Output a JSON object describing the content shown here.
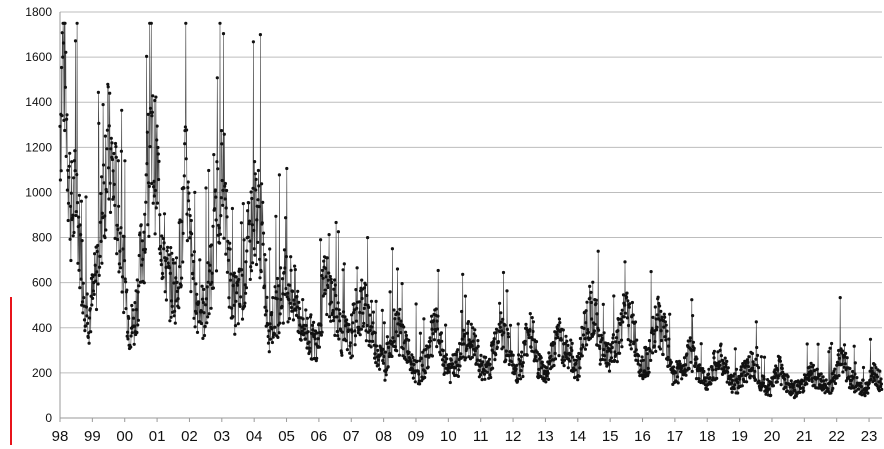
{
  "chart_data": {
    "type": "line",
    "title": "",
    "xlabel": "",
    "ylabel": "",
    "ylim": [
      0,
      1800
    ],
    "xlim": [
      1998,
      2023.4
    ],
    "grid": true,
    "legend": "none",
    "y_ticks": [
      0,
      200,
      400,
      600,
      800,
      1000,
      1200,
      1400,
      1600,
      1800
    ],
    "x_tick_labels": [
      "98",
      "99",
      "00",
      "01",
      "02",
      "03",
      "04",
      "05",
      "06",
      "07",
      "08",
      "09",
      "10",
      "11",
      "12",
      "13",
      "14",
      "15",
      "16",
      "17",
      "18",
      "19",
      "20",
      "21",
      "22",
      "23"
    ],
    "series": [
      {
        "color": "#111111",
        "anchors": [
          [
            1998.0,
            1300
          ],
          [
            1998.08,
            1600
          ],
          [
            1998.15,
            1620
          ],
          [
            1998.25,
            1150
          ],
          [
            1998.35,
            900
          ],
          [
            1998.5,
            980
          ],
          [
            1998.75,
            550
          ],
          [
            1998.9,
            450
          ],
          [
            1999.1,
            600
          ],
          [
            1999.3,
            900
          ],
          [
            1999.45,
            1200
          ],
          [
            1999.6,
            1100
          ],
          [
            1999.8,
            900
          ],
          [
            2000.0,
            600
          ],
          [
            2000.15,
            400
          ],
          [
            2000.3,
            420
          ],
          [
            2000.5,
            700
          ],
          [
            2000.7,
            950
          ],
          [
            2000.85,
            1180
          ],
          [
            2001.0,
            1100
          ],
          [
            2001.15,
            800
          ],
          [
            2001.35,
            600
          ],
          [
            2001.6,
            580
          ],
          [
            2001.8,
            850
          ],
          [
            2001.9,
            1100
          ],
          [
            2002.0,
            780
          ],
          [
            2002.2,
            520
          ],
          [
            2002.45,
            460
          ],
          [
            2002.7,
            650
          ],
          [
            2002.95,
            1100
          ],
          [
            2003.15,
            800
          ],
          [
            2003.35,
            500
          ],
          [
            2003.6,
            540
          ],
          [
            2003.85,
            780
          ],
          [
            2004.05,
            950
          ],
          [
            2004.25,
            800
          ],
          [
            2004.45,
            400
          ],
          [
            2004.7,
            480
          ],
          [
            2004.95,
            600
          ],
          [
            2005.15,
            580
          ],
          [
            2005.4,
            450
          ],
          [
            2005.65,
            380
          ],
          [
            2005.9,
            330
          ],
          [
            2006.2,
            600
          ],
          [
            2006.45,
            500
          ],
          [
            2006.7,
            380
          ],
          [
            2006.95,
            330
          ],
          [
            2007.15,
            450
          ],
          [
            2007.35,
            500
          ],
          [
            2007.6,
            420
          ],
          [
            2007.85,
            280
          ],
          [
            2008.05,
            230
          ],
          [
            2008.35,
            420
          ],
          [
            2008.6,
            350
          ],
          [
            2008.85,
            240
          ],
          [
            2009.1,
            200
          ],
          [
            2009.35,
            270
          ],
          [
            2009.6,
            400
          ],
          [
            2009.85,
            260
          ],
          [
            2010.05,
            210
          ],
          [
            2010.3,
            240
          ],
          [
            2010.55,
            350
          ],
          [
            2010.8,
            320
          ],
          [
            2011.05,
            210
          ],
          [
            2011.3,
            240
          ],
          [
            2011.55,
            420
          ],
          [
            2011.8,
            320
          ],
          [
            2012.05,
            200
          ],
          [
            2012.3,
            250
          ],
          [
            2012.5,
            430
          ],
          [
            2012.75,
            250
          ],
          [
            2013.0,
            190
          ],
          [
            2013.25,
            300
          ],
          [
            2013.45,
            350
          ],
          [
            2013.75,
            280
          ],
          [
            2014.0,
            220
          ],
          [
            2014.25,
            420
          ],
          [
            2014.45,
            500
          ],
          [
            2014.7,
            320
          ],
          [
            2014.95,
            260
          ],
          [
            2015.2,
            330
          ],
          [
            2015.45,
            460
          ],
          [
            2015.7,
            400
          ],
          [
            2015.95,
            230
          ],
          [
            2016.2,
            260
          ],
          [
            2016.45,
            440
          ],
          [
            2016.7,
            350
          ],
          [
            2016.95,
            190
          ],
          [
            2017.2,
            210
          ],
          [
            2017.45,
            300
          ],
          [
            2017.7,
            200
          ],
          [
            2017.95,
            160
          ],
          [
            2018.2,
            230
          ],
          [
            2018.45,
            260
          ],
          [
            2018.7,
            160
          ],
          [
            2018.95,
            150
          ],
          [
            2019.2,
            220
          ],
          [
            2019.45,
            240
          ],
          [
            2019.7,
            150
          ],
          [
            2019.95,
            130
          ],
          [
            2020.2,
            230
          ],
          [
            2020.4,
            170
          ],
          [
            2020.65,
            120
          ],
          [
            2020.9,
            140
          ],
          [
            2021.15,
            200
          ],
          [
            2021.4,
            170
          ],
          [
            2021.65,
            140
          ],
          [
            2021.9,
            160
          ],
          [
            2022.15,
            300
          ],
          [
            2022.4,
            180
          ],
          [
            2022.65,
            140
          ],
          [
            2022.9,
            130
          ],
          [
            2023.15,
            200
          ],
          [
            2023.4,
            150
          ]
        ]
      }
    ]
  }
}
